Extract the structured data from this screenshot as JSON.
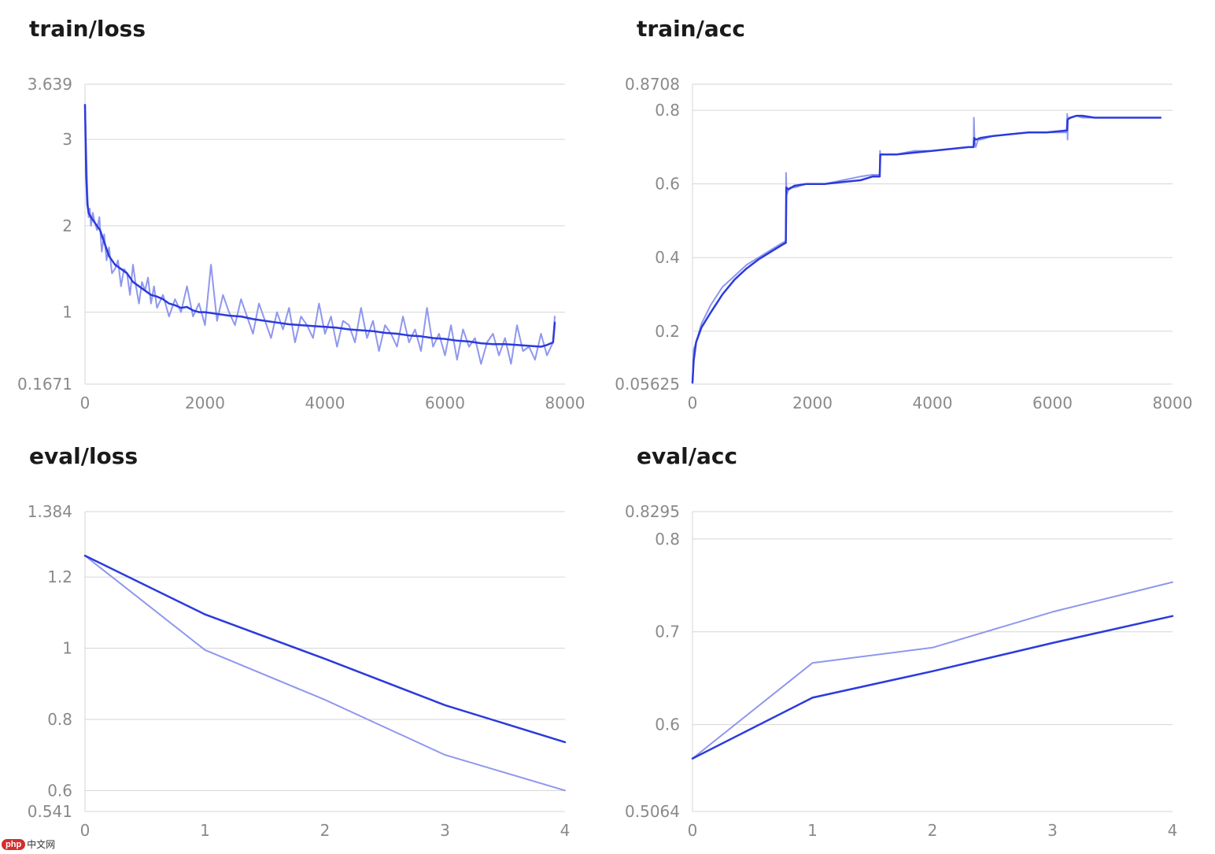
{
  "charts": [
    {
      "title": "train/loss",
      "chart_data": {
        "type": "line",
        "title": "train/loss",
        "xlim": [
          0,
          8000
        ],
        "ylim": [
          0.1671,
          3.639
        ],
        "xticks": [
          "0",
          "2000",
          "4000",
          "6000",
          "8000"
        ],
        "xtick_values": [
          0,
          2000,
          4000,
          6000,
          8000
        ],
        "yticks": [
          "0.1671",
          "1",
          "2",
          "3",
          "3.639"
        ],
        "ytick_values": [
          0.1671,
          1,
          2,
          3,
          3.639
        ],
        "grid": true,
        "series": [
          {
            "style": "raw",
            "color": "#8f97ee",
            "x": [
              0,
              20,
              40,
              60,
              80,
              100,
              130,
              160,
              200,
              240,
              280,
              320,
              360,
              400,
              450,
              500,
              550,
              600,
              650,
              700,
              750,
              800,
              850,
              900,
              950,
              1000,
              1050,
              1100,
              1150,
              1200,
              1300,
              1400,
              1500,
              1600,
              1700,
              1800,
              1900,
              2000,
              2100,
              2200,
              2300,
              2400,
              2500,
              2600,
              2700,
              2800,
              2900,
              3000,
              3100,
              3200,
              3300,
              3400,
              3500,
              3600,
              3700,
              3800,
              3900,
              4000,
              4100,
              4200,
              4300,
              4400,
              4500,
              4600,
              4700,
              4800,
              4900,
              5000,
              5100,
              5200,
              5300,
              5400,
              5500,
              5600,
              5700,
              5800,
              5900,
              6000,
              6100,
              6200,
              6300,
              6400,
              6500,
              6600,
              6700,
              6800,
              6900,
              7000,
              7100,
              7200,
              7300,
              7400,
              7500,
              7600,
              7700,
              7800,
              7830
            ],
            "y": [
              3.4,
              2.9,
              2.4,
              2.1,
              2.2,
              2.0,
              2.15,
              2.05,
              1.95,
              2.1,
              1.7,
              1.9,
              1.6,
              1.75,
              1.45,
              1.5,
              1.6,
              1.3,
              1.5,
              1.45,
              1.2,
              1.55,
              1.3,
              1.1,
              1.35,
              1.25,
              1.4,
              1.1,
              1.3,
              1.05,
              1.2,
              0.95,
              1.15,
              1.0,
              1.3,
              0.95,
              1.1,
              0.85,
              1.55,
              0.9,
              1.2,
              1.0,
              0.85,
              1.15,
              0.95,
              0.75,
              1.1,
              0.9,
              0.7,
              1.0,
              0.8,
              1.05,
              0.65,
              0.95,
              0.85,
              0.7,
              1.1,
              0.75,
              0.95,
              0.6,
              0.9,
              0.85,
              0.65,
              1.05,
              0.7,
              0.9,
              0.55,
              0.85,
              0.75,
              0.6,
              0.95,
              0.65,
              0.8,
              0.55,
              1.05,
              0.6,
              0.75,
              0.5,
              0.85,
              0.45,
              0.8,
              0.6,
              0.7,
              0.4,
              0.65,
              0.75,
              0.5,
              0.7,
              0.4,
              0.85,
              0.55,
              0.6,
              0.45,
              0.75,
              0.5,
              0.65,
              0.95
            ]
          },
          {
            "style": "smoothed",
            "color": "#2b3bdc",
            "x": [
              0,
              20,
              40,
              60,
              100,
              150,
              200,
              250,
              300,
              350,
              400,
              500,
              600,
              700,
              800,
              900,
              1000,
              1100,
              1200,
              1300,
              1400,
              1500,
              1600,
              1700,
              1800,
              1900,
              2000,
              2200,
              2400,
              2600,
              2800,
              3000,
              3200,
              3400,
              3600,
              3800,
              4000,
              4200,
              4400,
              4600,
              4800,
              5000,
              5200,
              5400,
              5600,
              5800,
              6000,
              6200,
              6400,
              6600,
              6800,
              7000,
              7200,
              7400,
              7600,
              7700,
              7800,
              7830
            ],
            "y": [
              3.4,
              2.6,
              2.25,
              2.15,
              2.1,
              2.05,
              2.0,
              1.95,
              1.85,
              1.75,
              1.65,
              1.55,
              1.5,
              1.45,
              1.35,
              1.3,
              1.25,
              1.2,
              1.18,
              1.15,
              1.1,
              1.08,
              1.05,
              1.06,
              1.02,
              1.0,
              1.0,
              0.98,
              0.96,
              0.95,
              0.92,
              0.9,
              0.88,
              0.86,
              0.85,
              0.84,
              0.83,
              0.82,
              0.8,
              0.79,
              0.78,
              0.76,
              0.75,
              0.73,
              0.72,
              0.7,
              0.69,
              0.67,
              0.66,
              0.64,
              0.63,
              0.63,
              0.62,
              0.61,
              0.6,
              0.62,
              0.65,
              0.88
            ]
          }
        ]
      }
    },
    {
      "title": "train/acc",
      "chart_data": {
        "type": "line",
        "title": "train/acc",
        "xlim": [
          0,
          8000
        ],
        "ylim": [
          0.05625,
          0.8708
        ],
        "xticks": [
          "0",
          "2000",
          "4000",
          "6000",
          "8000"
        ],
        "xtick_values": [
          0,
          2000,
          4000,
          6000,
          8000
        ],
        "yticks": [
          "0.05625",
          "0.2",
          "0.4",
          "0.6",
          "0.8",
          "0.8708"
        ],
        "ytick_values": [
          0.05625,
          0.2,
          0.4,
          0.6,
          0.8,
          0.8708
        ],
        "grid": true,
        "series": [
          {
            "style": "raw",
            "color": "#8f97ee",
            "x": [
              0,
              20,
              60,
              150,
              300,
              500,
              700,
              900,
              1100,
              1300,
              1500,
              1555,
              1560,
              1570,
              1590,
              1620,
              1700,
              1900,
              2200,
              2500,
              2800,
              3000,
              3120,
              3125,
              3130,
              3150,
              3200,
              3400,
              3700,
              4000,
              4300,
              4600,
              4685,
              4690,
              4700,
              4720,
              4760,
              4800,
              5000,
              5300,
              5600,
              5900,
              6240,
              6245,
              6250,
              6260,
              6300,
              6400,
              6500,
              6700,
              7000,
              7300,
              7600,
              7800
            ],
            "y": [
              0.06,
              0.15,
              0.17,
              0.22,
              0.27,
              0.32,
              0.35,
              0.38,
              0.4,
              0.42,
              0.44,
              0.445,
              0.63,
              0.57,
              0.58,
              0.59,
              0.59,
              0.6,
              0.6,
              0.61,
              0.62,
              0.625,
              0.625,
              0.69,
              0.68,
              0.68,
              0.68,
              0.68,
              0.69,
              0.69,
              0.695,
              0.7,
              0.7,
              0.78,
              0.72,
              0.7,
              0.72,
              0.72,
              0.73,
              0.735,
              0.74,
              0.74,
              0.74,
              0.79,
              0.72,
              0.78,
              0.78,
              0.785,
              0.78,
              0.78,
              0.78,
              0.78,
              0.78,
              0.78
            ]
          },
          {
            "style": "smoothed",
            "color": "#2b3bdc",
            "x": [
              0,
              20,
              60,
              150,
              300,
              500,
              700,
              900,
              1100,
              1300,
              1500,
              1555,
              1565,
              1600,
              1700,
              1900,
              2200,
              2500,
              2800,
              3000,
              3120,
              3130,
              3200,
              3400,
              3700,
              4000,
              4300,
              4600,
              4685,
              4695,
              4720,
              4800,
              5000,
              5300,
              5600,
              5900,
              6240,
              6250,
              6300,
              6400,
              6500,
              6700,
              7000,
              7300,
              7600,
              7800
            ],
            "y": [
              0.06,
              0.12,
              0.17,
              0.21,
              0.25,
              0.3,
              0.34,
              0.37,
              0.395,
              0.415,
              0.435,
              0.44,
              0.59,
              0.585,
              0.595,
              0.6,
              0.6,
              0.605,
              0.61,
              0.62,
              0.62,
              0.68,
              0.68,
              0.68,
              0.685,
              0.69,
              0.695,
              0.7,
              0.7,
              0.725,
              0.72,
              0.725,
              0.73,
              0.735,
              0.74,
              0.74,
              0.745,
              0.775,
              0.78,
              0.785,
              0.785,
              0.78,
              0.78,
              0.78,
              0.78,
              0.78
            ]
          }
        ]
      }
    },
    {
      "title": "eval/loss",
      "chart_data": {
        "type": "line",
        "title": "eval/loss",
        "xlim": [
          0,
          4
        ],
        "ylim": [
          0.541,
          1.384
        ],
        "xticks": [
          "0",
          "1",
          "2",
          "3",
          "4"
        ],
        "xtick_values": [
          0,
          1,
          2,
          3,
          4
        ],
        "yticks": [
          "0.541",
          "0.6",
          "0.8",
          "1",
          "1.2",
          "1.384"
        ],
        "ytick_values": [
          0.541,
          0.6,
          0.8,
          1,
          1.2,
          1.384
        ],
        "grid": true,
        "series": [
          {
            "style": "raw",
            "color": "#8f97ee",
            "x": [
              0,
              1,
              2,
              3,
              4
            ],
            "y": [
              1.26,
              0.995,
              0.855,
              0.7,
              0.6
            ]
          },
          {
            "style": "smoothed",
            "color": "#2b3bdc",
            "x": [
              0,
              1,
              2,
              3,
              4
            ],
            "y": [
              1.26,
              1.095,
              0.97,
              0.84,
              0.736
            ]
          }
        ]
      }
    },
    {
      "title": "eval/acc",
      "chart_data": {
        "type": "line",
        "title": "eval/acc",
        "xlim": [
          0,
          4
        ],
        "ylim": [
          0.5064,
          0.8295
        ],
        "xticks": [
          "0",
          "1",
          "2",
          "3",
          "4"
        ],
        "xtick_values": [
          0,
          1,
          2,
          3,
          4
        ],
        "yticks": [
          "0.5064",
          "0.6",
          "0.7",
          "0.8",
          "0.8295"
        ],
        "ytick_values": [
          0.5064,
          0.6,
          0.7,
          0.8,
          0.8295
        ],
        "grid": true,
        "series": [
          {
            "style": "raw",
            "color": "#8f97ee",
            "x": [
              0,
              1,
              2,
              3,
              4
            ],
            "y": [
              0.5635,
              0.6665,
              0.683,
              0.7215,
              0.7535
            ]
          },
          {
            "style": "smoothed",
            "color": "#2b3bdc",
            "x": [
              0,
              1,
              2,
              3,
              4
            ],
            "y": [
              0.5635,
              0.629,
              0.6575,
              0.688,
              0.717
            ]
          }
        ]
      }
    }
  ],
  "watermark": {
    "logo": "php",
    "text": "中文网"
  }
}
